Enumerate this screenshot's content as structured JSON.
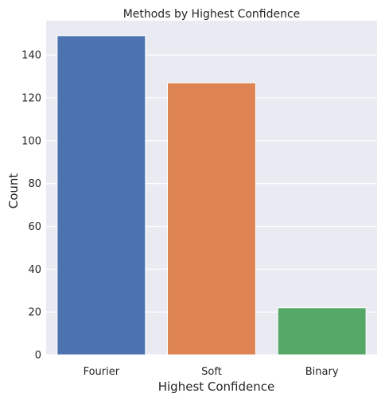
{
  "chart_data": {
    "type": "bar",
    "title": "Methods by Highest Confidence",
    "xlabel": "Highest Confidence",
    "ylabel": "Count",
    "categories": [
      "Fourier",
      "Soft",
      "Binary"
    ],
    "values": [
      149,
      127,
      22
    ],
    "colors": [
      "#4c72b0",
      "#dd8452",
      "#55a868"
    ],
    "ylim": [
      0,
      156
    ],
    "yticks": [
      0,
      20,
      40,
      60,
      80,
      100,
      120,
      140
    ],
    "grid": true,
    "background": "#eaeaf2",
    "grid_color": "#ffffff"
  }
}
